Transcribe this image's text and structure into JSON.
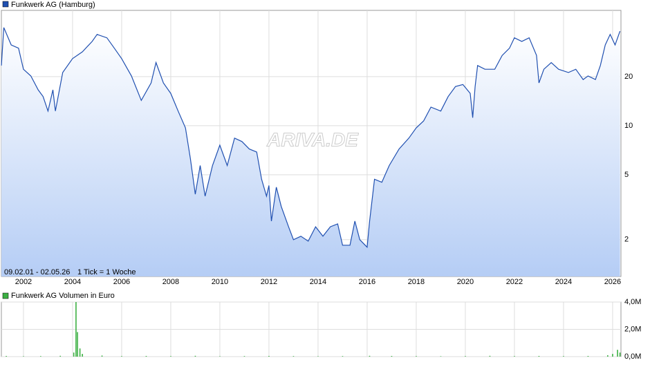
{
  "chart_data": [
    {
      "type": "line",
      "log_scale": true,
      "grid": true,
      "watermark": "ARIVA.DE",
      "annotations": [
        "09.02.01 - 02.05.26",
        "1 Tick = 1 Woche"
      ],
      "x": [
        2001.1,
        2001.2,
        2001.5,
        2001.8,
        2002.0,
        2002.3,
        2002.6,
        2002.8,
        2003.0,
        2003.2,
        2003.3,
        2003.6,
        2004.0,
        2004.4,
        2004.8,
        2005.0,
        2005.4,
        2005.7,
        2006.0,
        2006.4,
        2006.8,
        2007.2,
        2007.4,
        2007.7,
        2008.0,
        2008.3,
        2008.6,
        2008.8,
        2009.0,
        2009.2,
        2009.4,
        2009.7,
        2010.0,
        2010.3,
        2010.6,
        2010.9,
        2011.2,
        2011.5,
        2011.7,
        2011.9,
        2012.0,
        2012.1,
        2012.3,
        2012.5,
        2012.8,
        2013.0,
        2013.3,
        2013.6,
        2013.9,
        2014.2,
        2014.5,
        2014.8,
        2015.0,
        2015.3,
        2015.5,
        2015.7,
        2016.0,
        2016.1,
        2016.3,
        2016.6,
        2016.9,
        2017.3,
        2017.7,
        2018.0,
        2018.3,
        2018.6,
        2019.0,
        2019.3,
        2019.6,
        2019.9,
        2020.2,
        2020.3,
        2020.4,
        2020.5,
        2020.8,
        2021.2,
        2021.5,
        2021.8,
        2022.0,
        2022.3,
        2022.6,
        2022.9,
        2023.0,
        2023.2,
        2023.5,
        2023.8,
        2024.2,
        2024.5,
        2024.8,
        2025.0,
        2025.3,
        2025.5,
        2025.7,
        2025.9,
        2026.1,
        2026.3
      ],
      "series": [
        {
          "name": "Funkwerk AG (Hamburg)",
          "color": "#1f4fb0",
          "values": [
            23.4,
            40,
            31.3,
            29.9,
            22.2,
            20.2,
            16.6,
            15.1,
            12.3,
            16.6,
            12.3,
            21.2,
            25.8,
            28.4,
            32.9,
            36.3,
            34.6,
            29.9,
            25.8,
            20.2,
            14.3,
            18.3,
            24.4,
            18.3,
            15.8,
            12.3,
            9.7,
            6.3,
            3.8,
            5.7,
            3.7,
            5.7,
            7.6,
            5.7,
            8.4,
            8.0,
            7.2,
            6.9,
            4.7,
            3.7,
            4.3,
            2.6,
            4.2,
            3.2,
            2.4,
            2.0,
            2.1,
            1.96,
            2.4,
            2.1,
            2.4,
            2.5,
            1.85,
            1.85,
            2.6,
            2.0,
            1.8,
            2.6,
            4.7,
            4.5,
            5.7,
            7.2,
            8.4,
            9.7,
            10.7,
            13.0,
            12.3,
            15.1,
            17.4,
            17.9,
            15.8,
            11.2,
            17.4,
            23.4,
            22.2,
            22.2,
            27.0,
            29.9,
            34.6,
            32.9,
            34.6,
            27.0,
            18.3,
            22.2,
            24.4,
            22.2,
            21.2,
            22.2,
            19.2,
            20.2,
            19.2,
            23.4,
            31.3,
            36.3,
            31.3,
            38.0
          ]
        }
      ],
      "xlim": [
        2001.1,
        2026.34
      ],
      "xticks": [
        2002,
        2004,
        2006,
        2008,
        2010,
        2012,
        2014,
        2016,
        2018,
        2020,
        2022,
        2024,
        2026
      ],
      "ylim": [
        1.19,
        51
      ],
      "yticks": [
        2,
        5,
        10,
        20
      ]
    },
    {
      "type": "bar",
      "x": [
        2001.3,
        2002.0,
        2002.7,
        2003.5,
        2004.05,
        2004.14,
        2004.2,
        2004.3,
        2004.4,
        2005.2,
        2006.0,
        2007.0,
        2008.0,
        2009.0,
        2010.0,
        2011.0,
        2012.0,
        2013.0,
        2014.0,
        2015.0,
        2016.1,
        2017.0,
        2018.0,
        2019.0,
        2020.0,
        2021.0,
        2022.0,
        2023.0,
        2024.0,
        2025.0,
        2025.8,
        2026.0,
        2026.2,
        2026.3
      ],
      "series": [
        {
          "name": "Funkwerk AG Volumen in Euro",
          "color": "#3cb043",
          "values": [
            50000,
            30000,
            40000,
            60000,
            300000,
            4000000,
            1800000,
            600000,
            200000,
            80000,
            40000,
            50000,
            40000,
            60000,
            30000,
            40000,
            50000,
            40000,
            30000,
            40000,
            60000,
            50000,
            40000,
            30000,
            40000,
            60000,
            40000,
            50000,
            40000,
            50000,
            100000,
            200000,
            500000,
            300000
          ]
        }
      ],
      "ylim": [
        0,
        4000000
      ],
      "yticks": [
        {
          "value": 0,
          "label": "0,0M"
        },
        {
          "value": 2000000,
          "label": "2,0M"
        },
        {
          "value": 4000000,
          "label": "4,0M"
        }
      ]
    }
  ]
}
